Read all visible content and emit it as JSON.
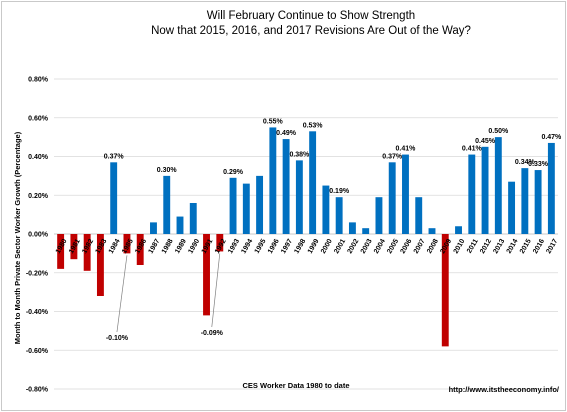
{
  "chart_data": {
    "type": "bar",
    "title_line1": "Will February Continue to Show Strength",
    "title_line2": "Now that 2015, 2016, and 2017 Revisions Are Out of the Way?",
    "xlabel": "CES Worker Data 1980 to date",
    "ylabel": "Month to Month Private Sector Worker Growth (Percentage)",
    "credit": "http://www.itstheeconomy.info/",
    "ylim": [
      -0.8,
      0.8
    ],
    "yticks": [
      "-0.80%",
      "-0.60%",
      "-0.40%",
      "-0.20%",
      "0.00%",
      "0.20%",
      "0.40%",
      "0.60%",
      "0.80%"
    ],
    "positive_color": "#0070c0",
    "negative_color": "#c00000",
    "categories": [
      "1980",
      "1981",
      "1982",
      "1983",
      "1984",
      "1985",
      "1986",
      "1987",
      "1988",
      "1989",
      "1990",
      "1991",
      "1992",
      "1993",
      "1994",
      "1995",
      "1996",
      "1997",
      "1998",
      "1999",
      "2000",
      "2001",
      "2002",
      "2003",
      "2004",
      "2005",
      "2006",
      "2007",
      "2008",
      "2009",
      "2010",
      "2011",
      "2012",
      "2013",
      "2014",
      "2015",
      "2016",
      "2017"
    ],
    "values": [
      -0.18,
      -0.13,
      -0.19,
      -0.32,
      0.37,
      -0.1,
      -0.16,
      0.06,
      0.3,
      0.09,
      0.16,
      -0.42,
      -0.09,
      0.29,
      0.26,
      0.3,
      0.55,
      0.49,
      0.38,
      0.53,
      0.25,
      0.19,
      0.06,
      0.03,
      0.19,
      0.37,
      0.41,
      0.19,
      0.03,
      -0.58,
      0.04,
      0.41,
      0.45,
      0.5,
      0.27,
      0.34,
      0.33,
      0.47
    ],
    "data_labels": [
      {
        "year": "1984",
        "text": "0.37%"
      },
      {
        "year": "1988",
        "text": "0.30%"
      },
      {
        "year": "1993",
        "text": "0.29%"
      },
      {
        "year": "1996",
        "text": "0.55%"
      },
      {
        "year": "1997",
        "text": "0.49%"
      },
      {
        "year": "1998",
        "text": "0.38%"
      },
      {
        "year": "1999",
        "text": "0.53%"
      },
      {
        "year": "2001",
        "text": "0.19%"
      },
      {
        "year": "2005",
        "text": "0.37%"
      },
      {
        "year": "2006",
        "text": "0.41%"
      },
      {
        "year": "2011",
        "text": "0.41%"
      },
      {
        "year": "2012",
        "text": "0.45%"
      },
      {
        "year": "2013",
        "text": "0.50%"
      },
      {
        "year": "2015",
        "text": "0.34%"
      },
      {
        "year": "2016",
        "text": "0.33%"
      },
      {
        "year": "2017",
        "text": "0.47%"
      }
    ],
    "callouts": [
      {
        "year": "1985",
        "text": "-0.10%"
      },
      {
        "year": "1992",
        "text": "-0.09%"
      }
    ]
  }
}
